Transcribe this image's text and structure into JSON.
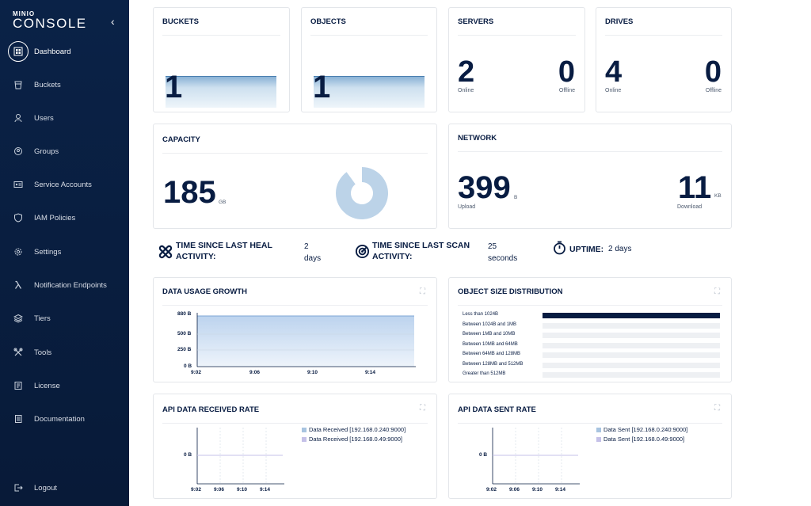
{
  "sidebar": {
    "brand": "MINIO",
    "product": "CONSOLE",
    "collapse_icon": "chevron-left-icon",
    "items": [
      {
        "label": "Dashboard",
        "icon": "dashboard-icon"
      },
      {
        "label": "Buckets",
        "icon": "bucket-icon"
      },
      {
        "label": "Users",
        "icon": "user-icon"
      },
      {
        "label": "Groups",
        "icon": "groups-icon"
      },
      {
        "label": "Service Accounts",
        "icon": "service-account-icon"
      },
      {
        "label": "IAM Policies",
        "icon": "shield-icon"
      },
      {
        "label": "Settings",
        "icon": "gear-icon"
      },
      {
        "label": "Notification Endpoints",
        "icon": "lambda-icon"
      },
      {
        "label": "Tiers",
        "icon": "tiers-icon"
      },
      {
        "label": "Tools",
        "icon": "tools-icon"
      },
      {
        "label": "License",
        "icon": "license-icon"
      },
      {
        "label": "Documentation",
        "icon": "documentation-icon"
      },
      {
        "label": "Logout",
        "icon": "logout-icon"
      }
    ]
  },
  "buckets": {
    "title": "BUCKETS",
    "value": "1"
  },
  "objects": {
    "title": "OBJECTS",
    "value": "1"
  },
  "servers": {
    "title": "SERVERS",
    "online": "2",
    "online_label": "Online",
    "offline": "0",
    "offline_label": "Offline"
  },
  "drives": {
    "title": "DRIVES",
    "online": "4",
    "online_label": "Online",
    "offline": "0",
    "offline_label": "Offline"
  },
  "capacity": {
    "title": "CAPACITY",
    "value": "185",
    "unit": "GB",
    "used_fraction": 0.9
  },
  "network": {
    "title": "NETWORK",
    "upload": "399",
    "upload_unit": "B",
    "upload_label": "Upload",
    "download": "11",
    "download_unit": "KB",
    "download_label": "Download"
  },
  "status": {
    "heal_label_1": "TIME SINCE LAST HEAL",
    "heal_label_2": "ACTIVITY:",
    "heal_value_1": "2",
    "heal_value_2": "days",
    "scan_label_1": "TIME SINCE LAST SCAN",
    "scan_label_2": "ACTIVITY:",
    "scan_value_1": "25",
    "scan_value_2": "seconds",
    "uptime_label": "UPTIME:",
    "uptime_value": "2 days"
  },
  "data_usage": {
    "title": "DATA USAGE GROWTH",
    "y_ticks": [
      "880 B",
      "500 B",
      "250 B",
      "0 B"
    ],
    "x_ticks": [
      "9:02",
      "9:06",
      "9:10",
      "9:14"
    ]
  },
  "size_dist": {
    "title": "OBJECT SIZE DISTRIBUTION",
    "rows": [
      {
        "label": "Less than 1024B",
        "fraction": 1.0
      },
      {
        "label": "Between 1024B and 1MB",
        "fraction": 0
      },
      {
        "label": "Between 1MB and 10MB",
        "fraction": 0
      },
      {
        "label": "Between 10MB and 64MB",
        "fraction": 0
      },
      {
        "label": "Between 64MB and 128MB",
        "fraction": 0
      },
      {
        "label": "Between 128MB and 512MB",
        "fraction": 0
      },
      {
        "label": "Greater than 512MB",
        "fraction": 0
      }
    ]
  },
  "api_received": {
    "title": "API DATA RECEIVED RATE",
    "y_tick": "0 B",
    "x_ticks": [
      "9:02",
      "9:06",
      "9:10",
      "9:14"
    ],
    "legend": [
      "Data Received [192.168.0.240:9000]",
      "Data Received [192.168.0.49:9000]"
    ]
  },
  "api_sent": {
    "title": "API DATA SENT RATE",
    "y_tick": "0 B",
    "x_ticks": [
      "9:02",
      "9:06",
      "9:10",
      "9:14"
    ],
    "legend": [
      "Data Sent [192.168.0.240:9000]",
      "Data Sent [192.168.0.49:9000]"
    ]
  },
  "colors": {
    "navy": "#081c42",
    "series1": "#a8c4e0",
    "series2": "#c5c1e8"
  },
  "expand_icon": "expand-icon"
}
